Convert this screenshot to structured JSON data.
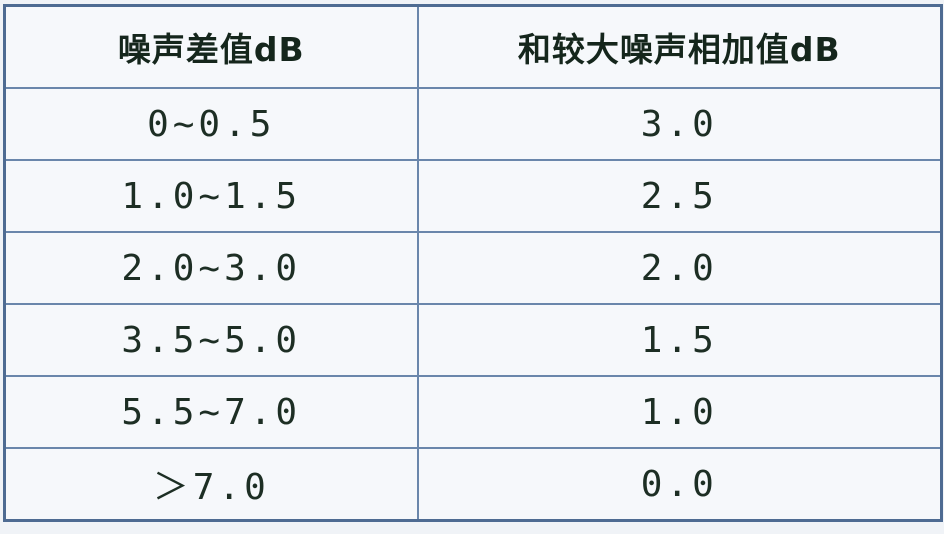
{
  "table": {
    "headers": [
      "噪声差值dB",
      "和较大噪声相加值dB"
    ],
    "rows": [
      [
        "0~0.5",
        "3.0"
      ],
      [
        "1.0~1.5",
        "2.5"
      ],
      [
        "2.0~3.0",
        "2.0"
      ],
      [
        "3.5~5.0",
        "1.5"
      ],
      [
        "5.5~7.0",
        "1.0"
      ],
      [
        "＞7.0",
        "0.0"
      ]
    ]
  },
  "colors": {
    "border": "#6a86ab",
    "outer_border": "#4e6b92",
    "background": "#f6f8fb",
    "text": "#1d2e24"
  }
}
